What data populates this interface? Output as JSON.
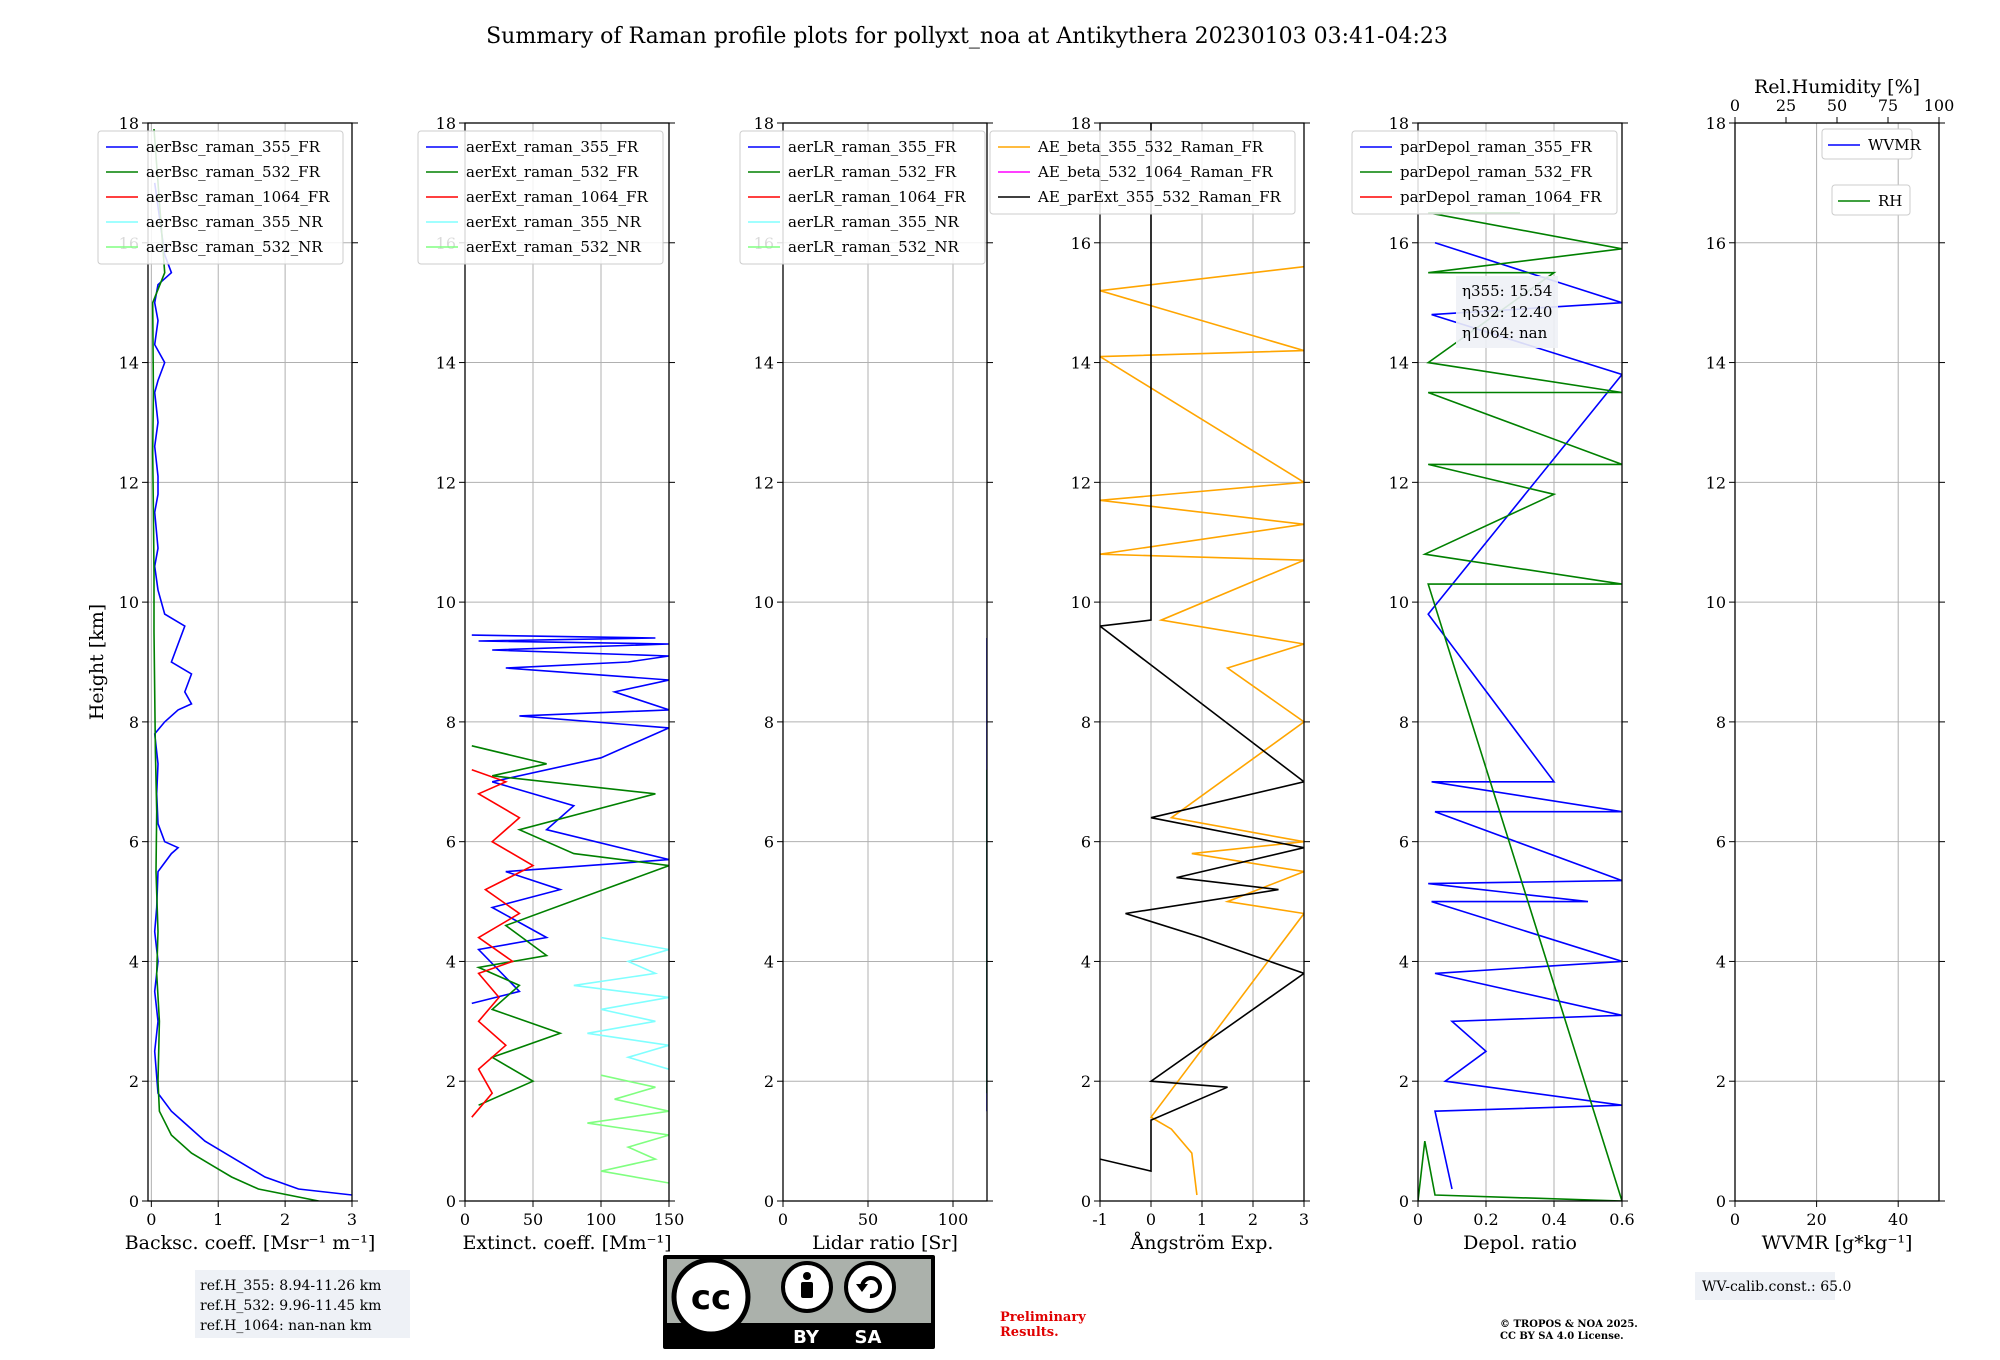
{
  "figure": {
    "title": "Summary of Raman profile plots for pollyxt_noa at Antikythera 20230103 03:41-04:23",
    "ref_lines": [
      "ref.H_355: 8.94-11.26 km",
      "ref.H_532: 9.96-11.45 km",
      "ref.H_1064: nan-nan km"
    ],
    "preliminary": [
      "Preliminary",
      "Results."
    ],
    "copyright": [
      "© TROPOS & NOA 2025.",
      "CC BY SA 4.0 License."
    ],
    "wv_calib": "WV-calib.const.: 65.0",
    "cc_badge": {
      "by": "BY",
      "sa": "SA"
    }
  },
  "colors": {
    "blue": "#0000ff",
    "green": "#008000",
    "red": "#ff0000",
    "cyan": "#80ffff",
    "lightgreen": "#80ff80",
    "orange": "#ffa500",
    "magenta": "#ff00ff",
    "black": "#000000",
    "grid": "#b0b0b0"
  },
  "chart_data": [
    {
      "type": "line",
      "title": "",
      "xlabel": "Backsc. coeff. [Msr⁻¹ m⁻¹]",
      "ylabel": "Height [km]",
      "xlim": [
        -0.05,
        3
      ],
      "ylim": [
        0,
        18
      ],
      "xticks": [
        0,
        1,
        2,
        3
      ],
      "yticks": [
        0,
        2,
        4,
        6,
        8,
        10,
        12,
        14,
        16,
        18
      ],
      "series": [
        {
          "name": "aerBsc_raman_355_FR",
          "color": "blue",
          "x": [
            3.0,
            2.2,
            1.7,
            1.4,
            1.1,
            0.8,
            0.5,
            0.3,
            0.1,
            0.05,
            0.1,
            0.05,
            0.1,
            0.05,
            0.08,
            0.1,
            0.3,
            0.4,
            0.2,
            0.1,
            0.08,
            0.1,
            0.05,
            0.2,
            0.4,
            0.6,
            0.5,
            0.6,
            0.3,
            0.4,
            0.5,
            0.2,
            0.1,
            0.05,
            0.1,
            0.05,
            0.1,
            0.1,
            0.05,
            0.1,
            0.05,
            0.1,
            0.2,
            0.05,
            0.1,
            0.05,
            0.1,
            0.3,
            0.2,
            0.05
          ],
          "y": [
            0.1,
            0.2,
            0.4,
            0.6,
            0.8,
            1.0,
            1.3,
            1.5,
            1.8,
            2.5,
            3.0,
            3.5,
            4.0,
            4.5,
            4.9,
            5.5,
            5.8,
            5.9,
            6.0,
            6.3,
            6.8,
            7.3,
            7.8,
            8.0,
            8.2,
            8.3,
            8.5,
            8.8,
            9.0,
            9.3,
            9.6,
            9.8,
            10.2,
            10.6,
            10.9,
            11.5,
            11.8,
            12.1,
            12.6,
            13.0,
            13.5,
            13.7,
            14.0,
            14.3,
            14.7,
            15.0,
            15.3,
            15.5,
            15.8,
            17.0
          ]
        },
        {
          "name": "aerBsc_raman_532_FR",
          "color": "green",
          "x": [
            2.5,
            1.6,
            1.2,
            0.9,
            0.6,
            0.3,
            0.12,
            0.1,
            0.12,
            0.08,
            0.1,
            0.07,
            0.08,
            0.06,
            0.05,
            0.04,
            0.04,
            0.03,
            0.02,
            0.03,
            0.02,
            0.2,
            0.04
          ],
          "y": [
            0.0,
            0.2,
            0.4,
            0.6,
            0.8,
            1.1,
            1.5,
            2.0,
            3.0,
            3.8,
            4.5,
            5.5,
            6.5,
            7.5,
            8.5,
            9.5,
            10.5,
            11.5,
            12.5,
            13.5,
            15.0,
            15.5,
            17.9
          ]
        },
        {
          "name": "aerBsc_raman_1064_FR",
          "color": "red",
          "x": [],
          "y": []
        },
        {
          "name": "aerBsc_raman_355_NR",
          "color": "cyan",
          "x": [],
          "y": []
        },
        {
          "name": "aerBsc_raman_532_NR",
          "color": "lightgreen",
          "x": [],
          "y": []
        }
      ]
    },
    {
      "type": "line",
      "title": "",
      "xlabel": "Extinct. coeff. [Mm⁻¹]",
      "ylabel": "",
      "xlim": [
        0,
        150
      ],
      "ylim": [
        0,
        18
      ],
      "xticks": [
        0,
        50,
        100,
        150
      ],
      "yticks": [
        0,
        2,
        4,
        6,
        8,
        10,
        12,
        14,
        16,
        18
      ],
      "series": [
        {
          "name": "aerExt_raman_355_FR",
          "color": "blue",
          "x": [
            5,
            40,
            10,
            60,
            20,
            70,
            30,
            150,
            60,
            80,
            20,
            100,
            150,
            40,
            150,
            110,
            150,
            30,
            120,
            150,
            20,
            150,
            10,
            140,
            5
          ],
          "y": [
            3.3,
            3.5,
            4.2,
            4.4,
            4.9,
            5.2,
            5.5,
            5.7,
            6.2,
            6.6,
            7.0,
            7.4,
            7.9,
            8.1,
            8.2,
            8.5,
            8.7,
            8.9,
            9.0,
            9.1,
            9.2,
            9.3,
            9.35,
            9.4,
            9.45
          ]
        },
        {
          "name": "aerExt_raman_532_FR",
          "color": "green",
          "x": [
            10,
            50,
            20,
            70,
            20,
            40,
            10,
            60,
            30,
            150,
            80,
            40,
            140,
            20,
            60,
            5
          ],
          "y": [
            1.6,
            2.0,
            2.4,
            2.8,
            3.2,
            3.6,
            3.9,
            4.1,
            4.6,
            5.6,
            5.8,
            6.2,
            6.8,
            7.1,
            7.3,
            7.6
          ]
        },
        {
          "name": "aerExt_raman_1064_FR",
          "color": "red",
          "x": [
            5,
            20,
            10,
            30,
            10,
            25,
            10,
            35,
            10,
            40,
            15,
            50,
            20,
            40,
            10,
            30,
            5
          ],
          "y": [
            1.4,
            1.8,
            2.2,
            2.6,
            3.0,
            3.4,
            3.8,
            4.0,
            4.4,
            4.8,
            5.2,
            5.6,
            6.0,
            6.4,
            6.8,
            7.0,
            7.2
          ]
        },
        {
          "name": "aerExt_raman_355_NR",
          "color": "cyan",
          "x": [
            150,
            120,
            150,
            90,
            140,
            100,
            150,
            80,
            140,
            120,
            150,
            100
          ],
          "y": [
            2.2,
            2.4,
            2.6,
            2.8,
            3.0,
            3.2,
            3.4,
            3.6,
            3.8,
            4.0,
            4.2,
            4.4
          ]
        },
        {
          "name": "aerExt_raman_532_NR",
          "color": "lightgreen",
          "x": [
            150,
            100,
            140,
            120,
            150,
            90,
            150,
            110,
            140,
            100
          ],
          "y": [
            0.3,
            0.5,
            0.7,
            0.9,
            1.1,
            1.3,
            1.5,
            1.7,
            1.9,
            2.1
          ]
        }
      ]
    },
    {
      "type": "line",
      "title": "",
      "xlabel": "Lidar ratio [Sr]",
      "ylabel": "",
      "xlim": [
        0,
        120
      ],
      "ylim": [
        0,
        18
      ],
      "xticks": [
        0,
        50,
        100
      ],
      "yticks": [
        0,
        2,
        4,
        6,
        8,
        10,
        12,
        14,
        16,
        18
      ],
      "series": [
        {
          "name": "aerLR_raman_355_FR",
          "color": "blue",
          "x": [
            120,
            120,
            120,
            120,
            120,
            120,
            120,
            120,
            120,
            120,
            120,
            120
          ],
          "y": [
            1.5,
            2.0,
            2.8,
            3.2,
            4.0,
            4.5,
            5.5,
            6.5,
            7.5,
            8.0,
            8.8,
            9.4
          ]
        },
        {
          "name": "aerLR_raman_532_FR",
          "color": "green",
          "x": [
            120,
            120,
            120,
            120,
            120,
            120,
            120
          ],
          "y": [
            1.8,
            2.3,
            4.2,
            5.0,
            5.8,
            6.3,
            7.2
          ]
        },
        {
          "name": "aerLR_raman_1064_FR",
          "color": "red",
          "x": [],
          "y": []
        },
        {
          "name": "aerLR_raman_355_NR",
          "color": "cyan",
          "x": [],
          "y": []
        },
        {
          "name": "aerLR_raman_532_NR",
          "color": "lightgreen",
          "x": [],
          "y": []
        }
      ]
    },
    {
      "type": "line",
      "title": "",
      "xlabel": "Ångström Exp.",
      "ylabel": "",
      "xlim": [
        -1,
        3
      ],
      "ylim": [
        0,
        18
      ],
      "xticks": [
        -1,
        0,
        1,
        2,
        3
      ],
      "yticks": [
        0,
        2,
        4,
        6,
        8,
        10,
        12,
        14,
        16,
        18
      ],
      "series": [
        {
          "name": "AE_beta_355_532_Raman_FR",
          "color": "orange",
          "x": [
            0.9,
            0.8,
            0.4,
            0.0,
            3.0,
            1.5,
            3.0,
            0.8,
            3.0,
            0.4,
            3.0,
            1.5,
            3.0,
            0.2,
            3.0,
            -1.0,
            3.0,
            -1.0,
            3.0,
            -1.0,
            3.0,
            -1.0,
            3.0
          ],
          "y": [
            0.1,
            0.8,
            1.2,
            1.4,
            4.8,
            5.0,
            5.5,
            5.8,
            6.0,
            6.4,
            8.0,
            8.9,
            9.3,
            9.7,
            10.7,
            10.8,
            11.3,
            11.7,
            12.0,
            14.1,
            14.2,
            15.2,
            15.6
          ]
        },
        {
          "name": "AE_beta_532_1064_Raman_FR",
          "color": "magenta",
          "x": [],
          "y": []
        },
        {
          "name": "AE_parExt_355_532_Raman_FR",
          "color": "black",
          "x": [
            -1.0,
            0.0,
            0.0,
            1.5,
            0.0,
            3.0,
            2.0,
            1.0,
            -0.5,
            2.5,
            0.5,
            3.0,
            0.0,
            3.0,
            -1.0,
            0.0,
            0.0
          ],
          "y": [
            0.7,
            0.5,
            1.35,
            1.9,
            2.0,
            3.8,
            4.1,
            4.4,
            4.8,
            5.2,
            5.4,
            5.9,
            6.4,
            7.0,
            9.6,
            9.7,
            18.0
          ]
        }
      ]
    },
    {
      "type": "line",
      "title": "",
      "xlabel": "Depol. ratio",
      "ylabel": "",
      "xlim": [
        0.0,
        0.6
      ],
      "ylim": [
        0,
        18
      ],
      "xticks": [
        0.0,
        0.2,
        0.4,
        0.6
      ],
      "yticks": [
        0,
        2,
        4,
        6,
        8,
        10,
        12,
        14,
        16,
        18
      ],
      "annotation": [
        "η355: 15.54",
        "η532: 12.40",
        "η1064: nan"
      ],
      "series": [
        {
          "name": "parDepol_raman_355_FR",
          "color": "blue",
          "x": [
            0.1,
            0.05,
            0.6,
            0.08,
            0.2,
            0.1,
            0.6,
            0.05,
            0.6,
            0.04,
            0.5,
            0.03,
            0.6,
            0.05,
            0.6,
            0.04,
            0.4,
            0.03,
            0.6,
            0.04,
            0.6,
            0.05
          ],
          "y": [
            0.2,
            1.5,
            1.6,
            2.0,
            2.5,
            3.0,
            3.1,
            3.8,
            4.0,
            5.0,
            5.0,
            5.3,
            5.35,
            6.5,
            6.5,
            7.0,
            7.0,
            9.8,
            13.8,
            14.8,
            15.0,
            16.0
          ]
        },
        {
          "name": "parDepol_raman_532_FR",
          "color": "green",
          "x": [
            0.0,
            0.02,
            0.05,
            0.6,
            0.03,
            0.6,
            0.02,
            0.4,
            0.03,
            0.6,
            0.03,
            0.6,
            0.03,
            0.4,
            0.03,
            0.6,
            0.03,
            0.3
          ],
          "y": [
            0.0,
            1.0,
            0.1,
            0.0,
            10.3,
            10.3,
            10.8,
            11.8,
            12.3,
            12.3,
            13.5,
            13.5,
            14.0,
            15.5,
            15.5,
            15.9,
            16.5,
            16.5
          ]
        },
        {
          "name": "parDepol_raman_1064_FR",
          "color": "red",
          "x": [],
          "y": []
        }
      ]
    },
    {
      "type": "line",
      "title": "",
      "xlabel": "WVMR [g*kg⁻¹]",
      "ylabel": "",
      "xlim": [
        0,
        50
      ],
      "ylim": [
        0,
        18
      ],
      "xticks": [
        0,
        20,
        40
      ],
      "yticks": [
        0,
        2,
        4,
        6,
        8,
        10,
        12,
        14,
        16,
        18
      ],
      "top_axis": {
        "label": "Rel.Humidity [%]",
        "ticks": [
          0,
          25,
          50,
          75,
          100
        ]
      },
      "series": [
        {
          "name": "WVMR",
          "color": "blue",
          "x": [],
          "y": []
        },
        {
          "name": "RH",
          "color": "green",
          "x": [],
          "y": []
        }
      ]
    }
  ]
}
